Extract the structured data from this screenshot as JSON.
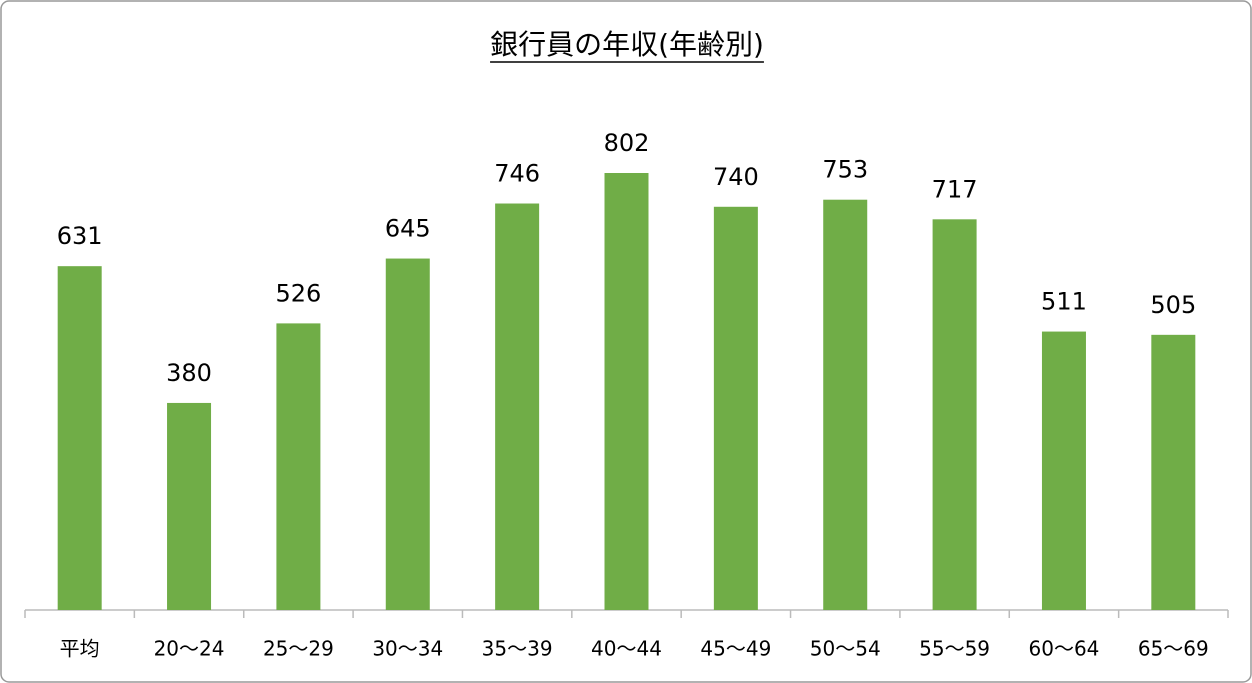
{
  "chart_data": {
    "type": "bar",
    "title": "銀行員の年収(年齢別)",
    "categories": [
      "平均",
      "20〜24",
      "25〜29",
      "30〜34",
      "35〜39",
      "40〜44",
      "45〜49",
      "50〜54",
      "55〜59",
      "60〜64",
      "65〜69"
    ],
    "values": [
      631,
      380,
      526,
      645,
      746,
      802,
      740,
      753,
      717,
      511,
      505
    ],
    "color": "#70ad47"
  }
}
